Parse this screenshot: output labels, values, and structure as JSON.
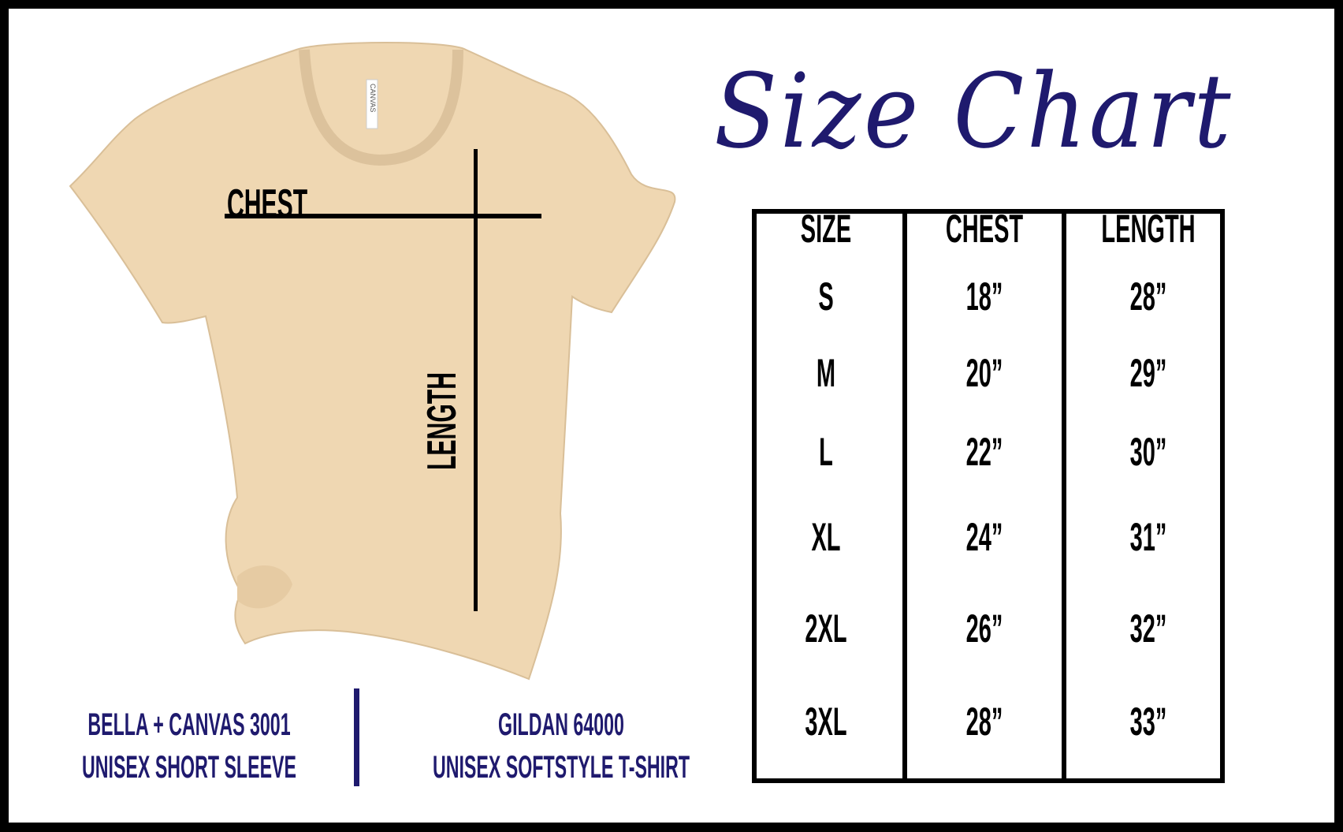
{
  "title": "Size Chart",
  "shirt": {
    "tag_text": "CANVAS",
    "chest_label": "CHEST",
    "length_label": "LENGTH",
    "color": "#efd7b2"
  },
  "table": {
    "headers": [
      "SIZE",
      "CHEST",
      "LENGTH"
    ],
    "rows": [
      [
        "S",
        "18”",
        "28”"
      ],
      [
        "M",
        "20”",
        "29”"
      ],
      [
        "L",
        "22”",
        "30”"
      ],
      [
        "XL",
        "24”",
        "31”"
      ],
      [
        "2XL",
        "26”",
        "32”"
      ],
      [
        "3XL",
        "28”",
        "33”"
      ]
    ]
  },
  "brands": [
    {
      "line1": "BELLA + CANVAS 3001",
      "line2": "UNISEX SHORT SLEEVE"
    },
    {
      "line1": "GILDAN 64000",
      "line2": "UNISEX SOFTSTYLE T-SHIRT"
    }
  ],
  "colors": {
    "navy": "#1f1a6e",
    "border": "#000000"
  }
}
